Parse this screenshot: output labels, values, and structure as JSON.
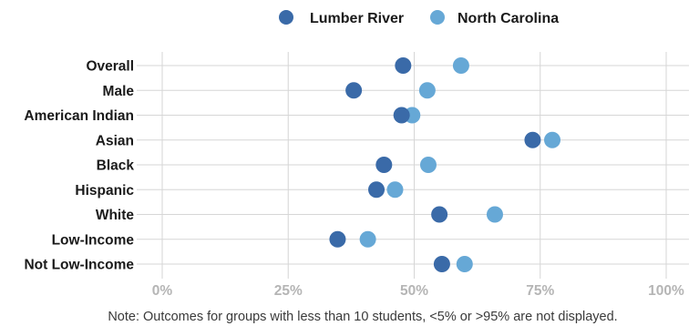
{
  "chart_data": {
    "type": "scatter",
    "subtype": "dot-plot",
    "title": "",
    "xlabel": "",
    "ylabel": "",
    "xlim": [
      0,
      100
    ],
    "x_ticks": [
      "0%",
      "25%",
      "50%",
      "75%",
      "100%"
    ],
    "x_tick_values": [
      0,
      25,
      50,
      75,
      100
    ],
    "grid": true,
    "legend_position": "top-center",
    "categories": [
      "Overall",
      "Male",
      "American Indian",
      "Asian",
      "Black",
      "Hispanic",
      "White",
      "Low-Income",
      "Not Low-Income"
    ],
    "series": [
      {
        "name": "Lumber River",
        "color": "#3a6aa8",
        "values": [
          47.8,
          38,
          47.5,
          73.5,
          44,
          42.5,
          55,
          34.8,
          55.5
        ]
      },
      {
        "name": "North Carolina",
        "color": "#66a8d6",
        "values": [
          59.3,
          52.6,
          49.6,
          77.4,
          52.8,
          46.2,
          66,
          40.8,
          60
        ]
      }
    ],
    "note": "Note: Outcomes for groups with less than 10 students, <5% or >95% are not displayed."
  }
}
